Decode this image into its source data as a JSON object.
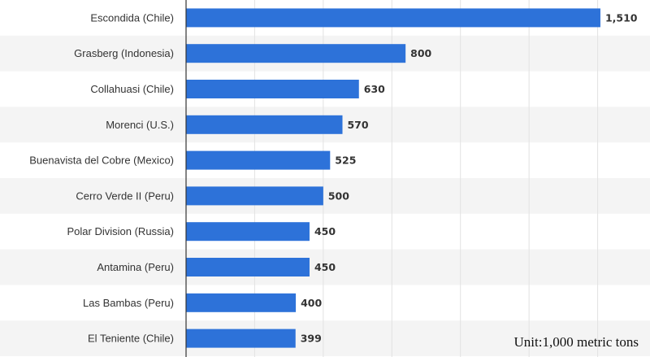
{
  "colors": {
    "bar": "#2d72d9",
    "band": "#f4f4f4",
    "grid": "#e2e2e2",
    "axis": "#333333"
  },
  "unit_note": "Unit:1,000 metric tons",
  "chart_data": {
    "type": "bar",
    "orientation": "horizontal",
    "categories": [
      "Escondida (Chile)",
      "Grasberg (Indonesia)",
      "Collahuasi (Chile)",
      "Morenci (U.S.)",
      "Buenavista del Cobre (Mexico)",
      "Cerro Verde II (Peru)",
      "Polar Division (Russia)",
      "Antamina (Peru)",
      "Las Bambas (Peru)",
      "El Teniente (Chile)"
    ],
    "values": [
      1510,
      800,
      630,
      570,
      525,
      500,
      450,
      450,
      400,
      399
    ],
    "value_labels": [
      "1,510",
      "800",
      "630",
      "570",
      "525",
      "500",
      "450",
      "450",
      "400",
      "399"
    ],
    "xlim": [
      0,
      1750
    ],
    "grid": true
  }
}
